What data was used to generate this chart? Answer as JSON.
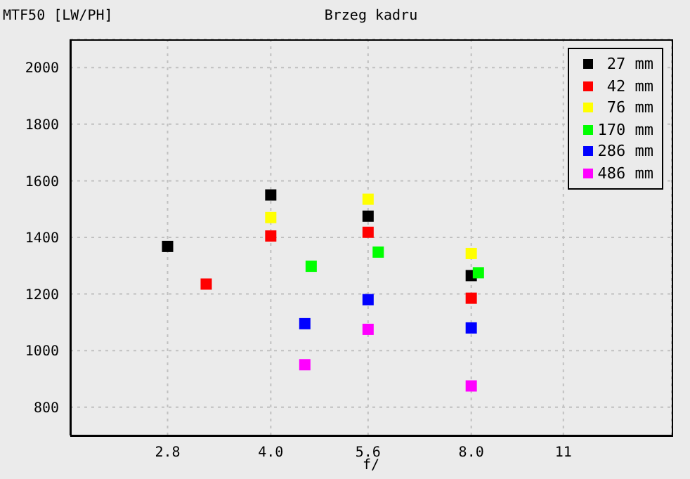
{
  "chart_data": {
    "type": "scatter",
    "title": "Brzeg kadru",
    "ylabel": "MTF50 [LW/PH]",
    "xlabel": "f/",
    "log": "x",
    "xlim": [
      2,
      16
    ],
    "xticks": [
      2.8,
      {
        "value": 4,
        "label": "4.0"
      },
      5.6,
      {
        "value": 8,
        "label": "8.0"
      },
      11
    ],
    "ylim": [
      700,
      2100
    ],
    "yticks": [
      800,
      1000,
      1200,
      1400,
      1600,
      1800,
      2000
    ],
    "grid": true,
    "legend": "top right",
    "marker": "square",
    "series": [
      {
        "name": "27 mm",
        "color": "#000000",
        "x": [
          2.8,
          4,
          5.6,
          8
        ],
        "values": [
          1368,
          1550,
          1475,
          1265
        ]
      },
      {
        "name": "42 mm",
        "color": "#ff0000",
        "x": [
          3.2,
          4,
          5.6,
          8
        ],
        "values": [
          1235,
          1405,
          1418,
          1185
        ]
      },
      {
        "name": "76 mm",
        "color": "#ffff00",
        "x": [
          4,
          5.6,
          8
        ],
        "values": [
          1470,
          1535,
          1343
        ]
      },
      {
        "name": "170 mm",
        "color": "#00ff00",
        "x": [
          4.6,
          5.8,
          8.2
        ],
        "values": [
          1298,
          1348,
          1275
        ]
      },
      {
        "name": "286 mm",
        "color": "#0000ff",
        "x": [
          4.5,
          5.6,
          8
        ],
        "values": [
          1095,
          1180,
          1080
        ]
      },
      {
        "name": "486 mm",
        "color": "#ff00ff",
        "x": [
          4.5,
          5.6,
          8
        ],
        "values": [
          950,
          1075,
          875
        ]
      }
    ]
  }
}
